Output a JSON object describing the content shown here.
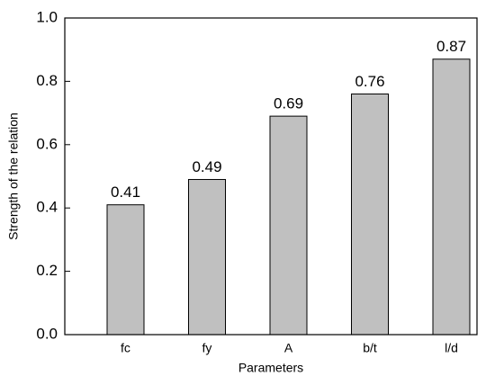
{
  "chart_data": {
    "type": "bar",
    "x_label": "Parameters",
    "y_label": "Strength of the relation",
    "categories": [
      "fc",
      "fy",
      "A",
      "b/t",
      "l/d"
    ],
    "values": [
      0.41,
      0.49,
      0.69,
      0.76,
      0.87
    ],
    "color": "#c0c0c0",
    "ylim": [
      0,
      1
    ],
    "yticks": [
      {
        "value": 0,
        "label": "0.0"
      },
      0.2,
      0.4,
      0.6,
      0.8,
      {
        "value": 1,
        "label": "1.0"
      }
    ]
  }
}
